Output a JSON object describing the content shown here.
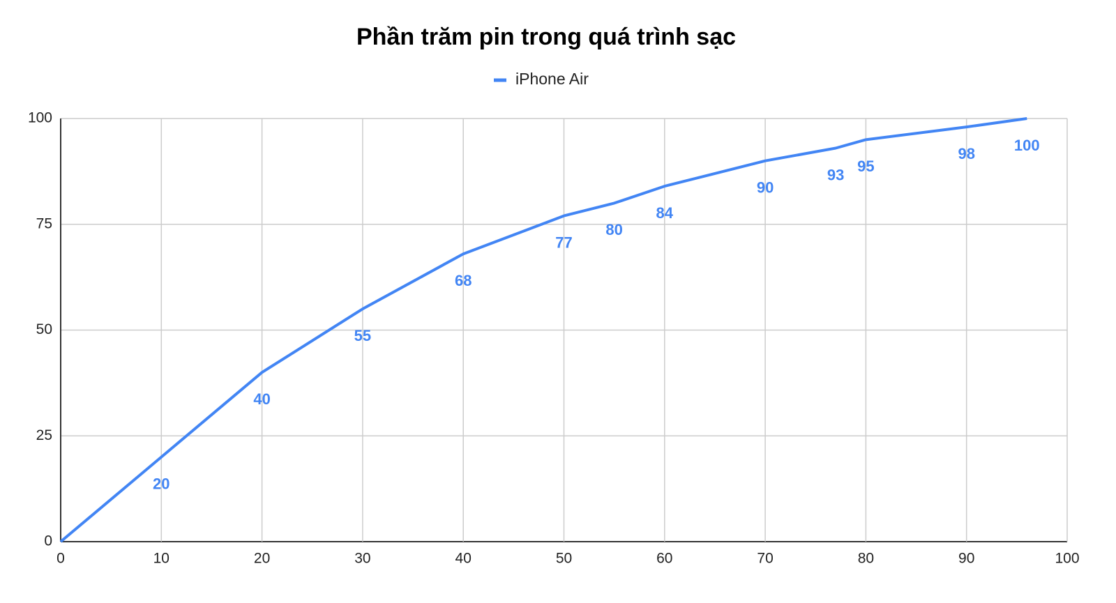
{
  "chart_data": {
    "type": "line",
    "title": "Phần trăm pin trong quá trình sạc",
    "x": [
      0,
      10,
      20,
      30,
      40,
      50,
      55,
      60,
      70,
      77,
      80,
      90,
      96
    ],
    "series": [
      {
        "name": "iPhone Air",
        "color": "#4285f4",
        "values": [
          0,
          20,
          40,
          55,
          68,
          77,
          80,
          84,
          90,
          93,
          95,
          98,
          100
        ]
      }
    ],
    "xlim": [
      0,
      100
    ],
    "xticks": [
      0,
      10,
      20,
      30,
      40,
      50,
      60,
      70,
      80,
      90,
      100
    ],
    "ylim": [
      0,
      100
    ],
    "yticks": [
      0,
      25,
      50,
      75,
      100
    ],
    "grid": true,
    "legend": "top"
  }
}
